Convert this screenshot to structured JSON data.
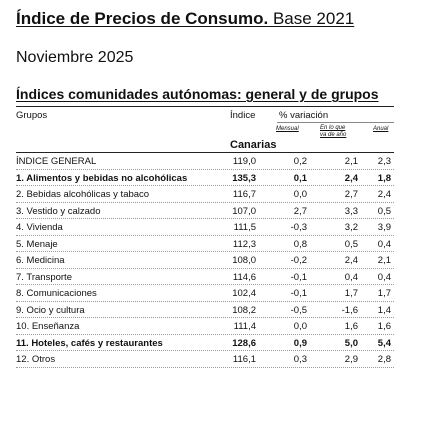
{
  "header": {
    "title_bold": "Índice de Precios de Consumo.",
    "title_light": " Base 2021",
    "subtitle": "Noviembre 2025",
    "section": "Índices comunidades autónomas: general y de grupos"
  },
  "columns": {
    "groups": "Grupos",
    "index": "Índice",
    "variation": "% variación",
    "monthly": "Mensual",
    "ytd_line1": "En lo que",
    "ytd_line2": "va de año",
    "annual": "Anual"
  },
  "region": "Canarias",
  "rows": [
    {
      "name": "ÍNDICE GENERAL",
      "index": "119,0",
      "monthly": "0,2",
      "ytd": "2,1",
      "annual": "2,3",
      "bold": false
    },
    {
      "name": "1. Alimentos y bebidas no alcohólicas",
      "index": "135,3",
      "monthly": "0,1",
      "ytd": "2,4",
      "annual": "1,8",
      "bold": true
    },
    {
      "name": "2. Bebidas alcohólicas y tabaco",
      "index": "116,7",
      "monthly": "0,0",
      "ytd": "2,7",
      "annual": "2,4",
      "bold": false
    },
    {
      "name": "3. Vestido y calzado",
      "index": "107,0",
      "monthly": "2,7",
      "ytd": "3,3",
      "annual": "0,5",
      "bold": false
    },
    {
      "name": "4. Vivienda",
      "index": "111,5",
      "monthly": "-0,3",
      "ytd": "3,2",
      "annual": "3,9",
      "bold": false
    },
    {
      "name": "5. Menaje",
      "index": "112,3",
      "monthly": "0,8",
      "ytd": "0,5",
      "annual": "0,4",
      "bold": false
    },
    {
      "name": "6. Medicina",
      "index": "108,0",
      "monthly": "-0,2",
      "ytd": "2,4",
      "annual": "2,1",
      "bold": false
    },
    {
      "name": "7. Transporte",
      "index": "114,6",
      "monthly": "-0,1",
      "ytd": "0,4",
      "annual": "0,4",
      "bold": false
    },
    {
      "name": "8. Comunicaciones",
      "index": "102,4",
      "monthly": "-0,1",
      "ytd": "1,7",
      "annual": "1,7",
      "bold": false
    },
    {
      "name": "9. Ocio y cultura",
      "index": "108,2",
      "monthly": "-0,5",
      "ytd": "-1,6",
      "annual": "1,4",
      "bold": false
    },
    {
      "name": "10. Enseñanza",
      "index": "111,4",
      "monthly": "0,0",
      "ytd": "1,6",
      "annual": "1,6",
      "bold": false
    },
    {
      "name": "11. Hoteles, cafés y restaurantes",
      "index": "128,6",
      "monthly": "0,9",
      "ytd": "5,0",
      "annual": "5,4",
      "bold": true
    },
    {
      "name": "12. Otros",
      "index": "116,1",
      "monthly": "0,3",
      "ytd": "2,9",
      "annual": "2,8",
      "bold": false
    }
  ]
}
